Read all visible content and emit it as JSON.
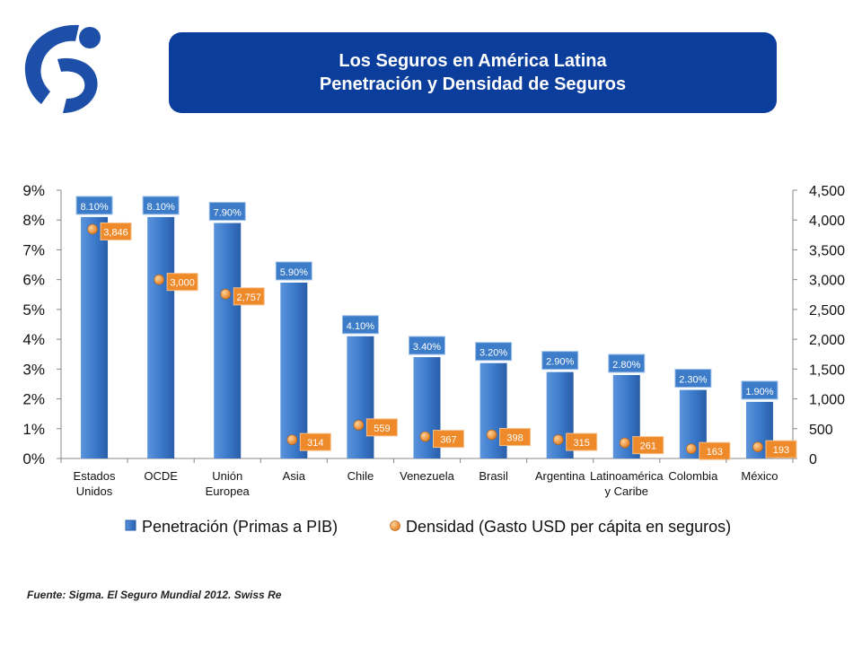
{
  "header": {
    "line1": "Los Seguros en América Latina",
    "line2": "Penetración y Densidad de Seguros"
  },
  "source": "Fuente: Sigma. El Seguro Mundial 2012. Swiss Re",
  "colors": {
    "header_bg": "#0a3d9c",
    "bar": "#3a78c9",
    "bar_label": "#3c7cc8",
    "dot": "#e07c1e",
    "dot_label": "#ef8a2a"
  },
  "chart_data": {
    "type": "bar",
    "categories": [
      [
        "Estados",
        "Unidos"
      ],
      [
        "OCDE"
      ],
      [
        "Unión",
        "Europea"
      ],
      [
        "Asia"
      ],
      [
        "Chile"
      ],
      [
        "Venezuela"
      ],
      [
        "Brasil"
      ],
      [
        "Argentina"
      ],
      [
        "Latinoamérica",
        "y Caribe"
      ],
      [
        "Colombia"
      ],
      [
        "México"
      ]
    ],
    "series": [
      {
        "name": "Penetración (Primas a PIB)",
        "axis": "left",
        "kind": "bar",
        "values": [
          8.1,
          8.1,
          7.9,
          5.9,
          4.1,
          3.4,
          3.2,
          2.9,
          2.8,
          2.3,
          1.9
        ],
        "labels": [
          "8.10%",
          "8.10%",
          "7.90%",
          "5.90%",
          "4.10%",
          "3.40%",
          "3.20%",
          "2.90%",
          "2.80%",
          "2.30%",
          "1.90%"
        ]
      },
      {
        "name": "Densidad (Gasto USD per cápita en seguros)",
        "axis": "right",
        "kind": "marker",
        "values": [
          3846,
          3000,
          2757,
          314,
          559,
          367,
          398,
          315,
          261,
          163,
          193
        ],
        "labels": [
          "3,846",
          "3,000",
          "2,757",
          "314",
          "559",
          "367",
          "398",
          "315",
          "261",
          "163",
          "193"
        ]
      }
    ],
    "y_left": {
      "min": 0,
      "max": 9,
      "ticks": [
        "0%",
        "1%",
        "2%",
        "3%",
        "4%",
        "5%",
        "6%",
        "7%",
        "8%",
        "9%"
      ]
    },
    "y_right": {
      "min": 0,
      "max": 4500,
      "ticks": [
        "0",
        "500",
        "1,000",
        "1,500",
        "2,000",
        "2,500",
        "3,000",
        "3,500",
        "4,000",
        "4,500"
      ]
    },
    "legend": [
      "Penetración (Primas a PIB)",
      "Densidad (Gasto USD per cápita en seguros)"
    ]
  }
}
